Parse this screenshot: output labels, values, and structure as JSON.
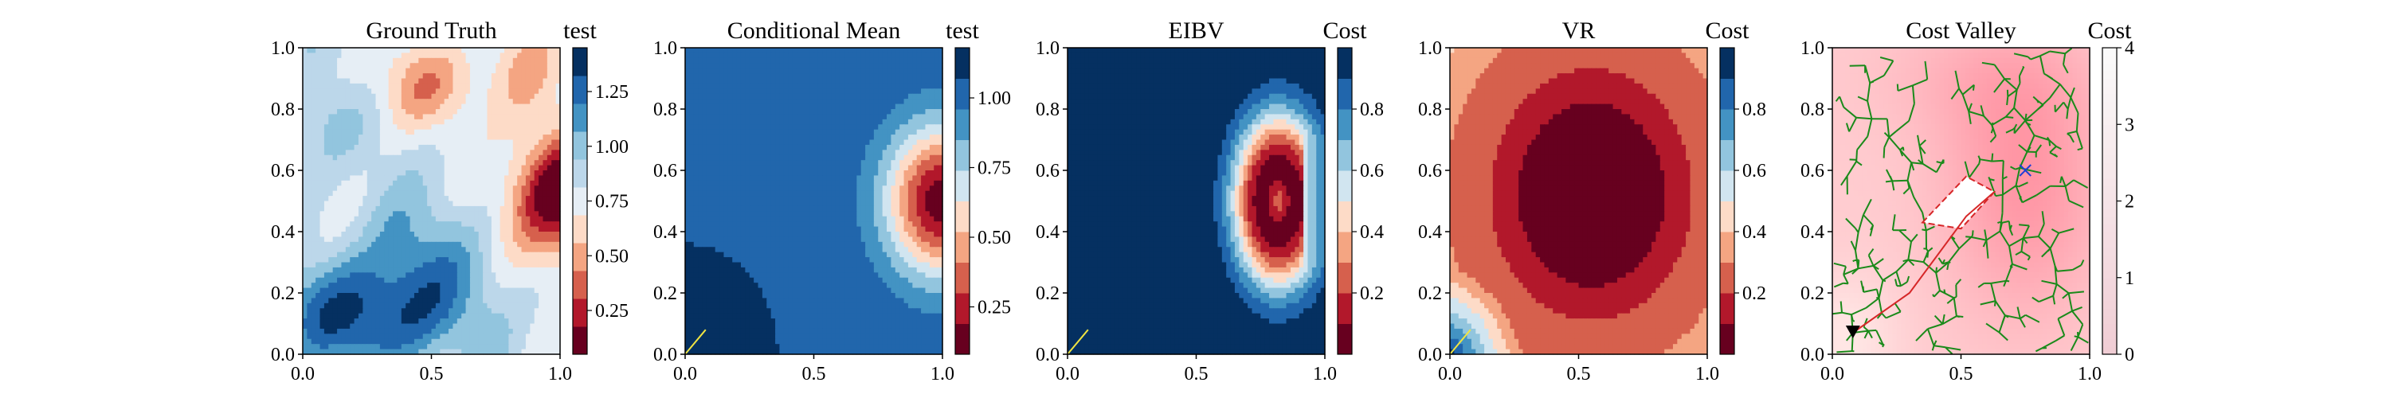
{
  "panels": [
    {
      "title": "Ground Truth",
      "colorbar_label": "test",
      "colorbar_ticks": [
        "0.25",
        "0.50",
        "0.75",
        "1.00",
        "1.25"
      ],
      "colorbar_range": [
        0.05,
        1.45
      ],
      "x_ticks": [
        "0.0",
        "0.5",
        "1.0"
      ],
      "y_ticks": [
        "0.0",
        "0.2",
        "0.4",
        "0.6",
        "0.8",
        "1.0"
      ]
    },
    {
      "title": "Conditional Mean",
      "colorbar_label": "test",
      "colorbar_ticks": [
        "0.25",
        "0.50",
        "0.75",
        "1.00"
      ],
      "colorbar_range": [
        0.08,
        1.18
      ],
      "x_ticks": [
        "0.0",
        "0.5",
        "1.0"
      ],
      "y_ticks": [
        "0.0",
        "0.2",
        "0.4",
        "0.6",
        "0.8",
        "1.0"
      ]
    },
    {
      "title": "EIBV",
      "colorbar_label": "Cost",
      "colorbar_ticks": [
        "0.2",
        "0.4",
        "0.6",
        "0.8"
      ],
      "colorbar_range": [
        0.0,
        1.0
      ],
      "x_ticks": [
        "0.0",
        "0.5",
        "1.0"
      ],
      "y_ticks": [
        "0.0",
        "0.2",
        "0.4",
        "0.6",
        "0.8",
        "1.0"
      ]
    },
    {
      "title": "VR",
      "colorbar_label": "Cost",
      "colorbar_ticks": [
        "0.2",
        "0.4",
        "0.6",
        "0.8"
      ],
      "colorbar_range": [
        0.0,
        1.0
      ],
      "x_ticks": [
        "0.0",
        "0.5",
        "1.0"
      ],
      "y_ticks": [
        "0.0",
        "0.2",
        "0.4",
        "0.6",
        "0.8",
        "1.0"
      ]
    },
    {
      "title": "Cost Valley",
      "colorbar_label": "Cost",
      "colorbar_ticks": [
        "0",
        "1",
        "2",
        "3",
        "4"
      ],
      "colorbar_range": [
        0,
        4
      ],
      "x_ticks": [
        "0.0",
        "0.5",
        "1.0"
      ],
      "y_ticks": [
        "0.0",
        "0.2",
        "0.4",
        "0.6",
        "0.8",
        "1.0"
      ]
    }
  ],
  "colors": {
    "rdbu": [
      "#67001f",
      "#b2182b",
      "#d6604d",
      "#f4a582",
      "#fddbc7",
      "#f7f7f7",
      "#d1e5f0",
      "#92c5de",
      "#4393c3",
      "#2166ac",
      "#053061"
    ],
    "tree": "#1a8a1a",
    "path": "#d62728",
    "trajectory": "#f0e442",
    "start_marker": "#000000",
    "target_marker": "#1f3fd6"
  },
  "chart_data": [
    {
      "type": "heatmap",
      "title": "Ground Truth",
      "colorbar_label": "test",
      "xlim": [
        0,
        1
      ],
      "ylim": [
        0,
        1
      ],
      "description_values": {
        "min": 0.1,
        "max": 1.4
      },
      "hot_spot": {
        "x": 1.0,
        "y": 0.52,
        "value": 0.1
      },
      "low_region": {
        "x": 0.25,
        "y": 0.1,
        "value": 1.4
      }
    },
    {
      "type": "heatmap",
      "title": "Conditional Mean",
      "colorbar_label": "test",
      "xlim": [
        0,
        1
      ],
      "ylim": [
        0,
        1
      ],
      "hot_spot": {
        "x": 1.0,
        "y": 0.5,
        "value": 0.1
      },
      "trajectory": [
        [
          0.0,
          0.0
        ],
        [
          0.08,
          0.08
        ]
      ]
    },
    {
      "type": "heatmap",
      "title": "EIBV",
      "colorbar_label": "Cost",
      "xlim": [
        0,
        1
      ],
      "ylim": [
        0,
        1
      ],
      "hot_spot": {
        "x": 0.8,
        "y": 0.5,
        "value": 0.0
      },
      "trajectory": [
        [
          0.0,
          0.0
        ],
        [
          0.08,
          0.08
        ]
      ]
    },
    {
      "type": "heatmap",
      "title": "VR",
      "colorbar_label": "Cost",
      "xlim": [
        0,
        1
      ],
      "ylim": [
        0,
        1
      ],
      "hot_spot": {
        "x": 0.55,
        "y": 0.55,
        "value": 0.0
      },
      "trajectory": [
        [
          0.0,
          0.0
        ],
        [
          0.08,
          0.08
        ]
      ]
    },
    {
      "type": "heatmap",
      "title": "Cost Valley",
      "colorbar_label": "Cost",
      "xlim": [
        0,
        1
      ],
      "ylim": [
        0,
        1
      ],
      "clim": [
        0,
        4
      ],
      "start": {
        "x": 0.08,
        "y": 0.07
      },
      "target": {
        "x": 0.75,
        "y": 0.6
      },
      "obstacle": [
        [
          0.35,
          0.43
        ],
        [
          0.52,
          0.58
        ],
        [
          0.63,
          0.53
        ],
        [
          0.5,
          0.41
        ]
      ],
      "path": [
        [
          0.08,
          0.07
        ],
        [
          0.3,
          0.2
        ],
        [
          0.52,
          0.45
        ],
        [
          0.63,
          0.53
        ]
      ]
    }
  ]
}
